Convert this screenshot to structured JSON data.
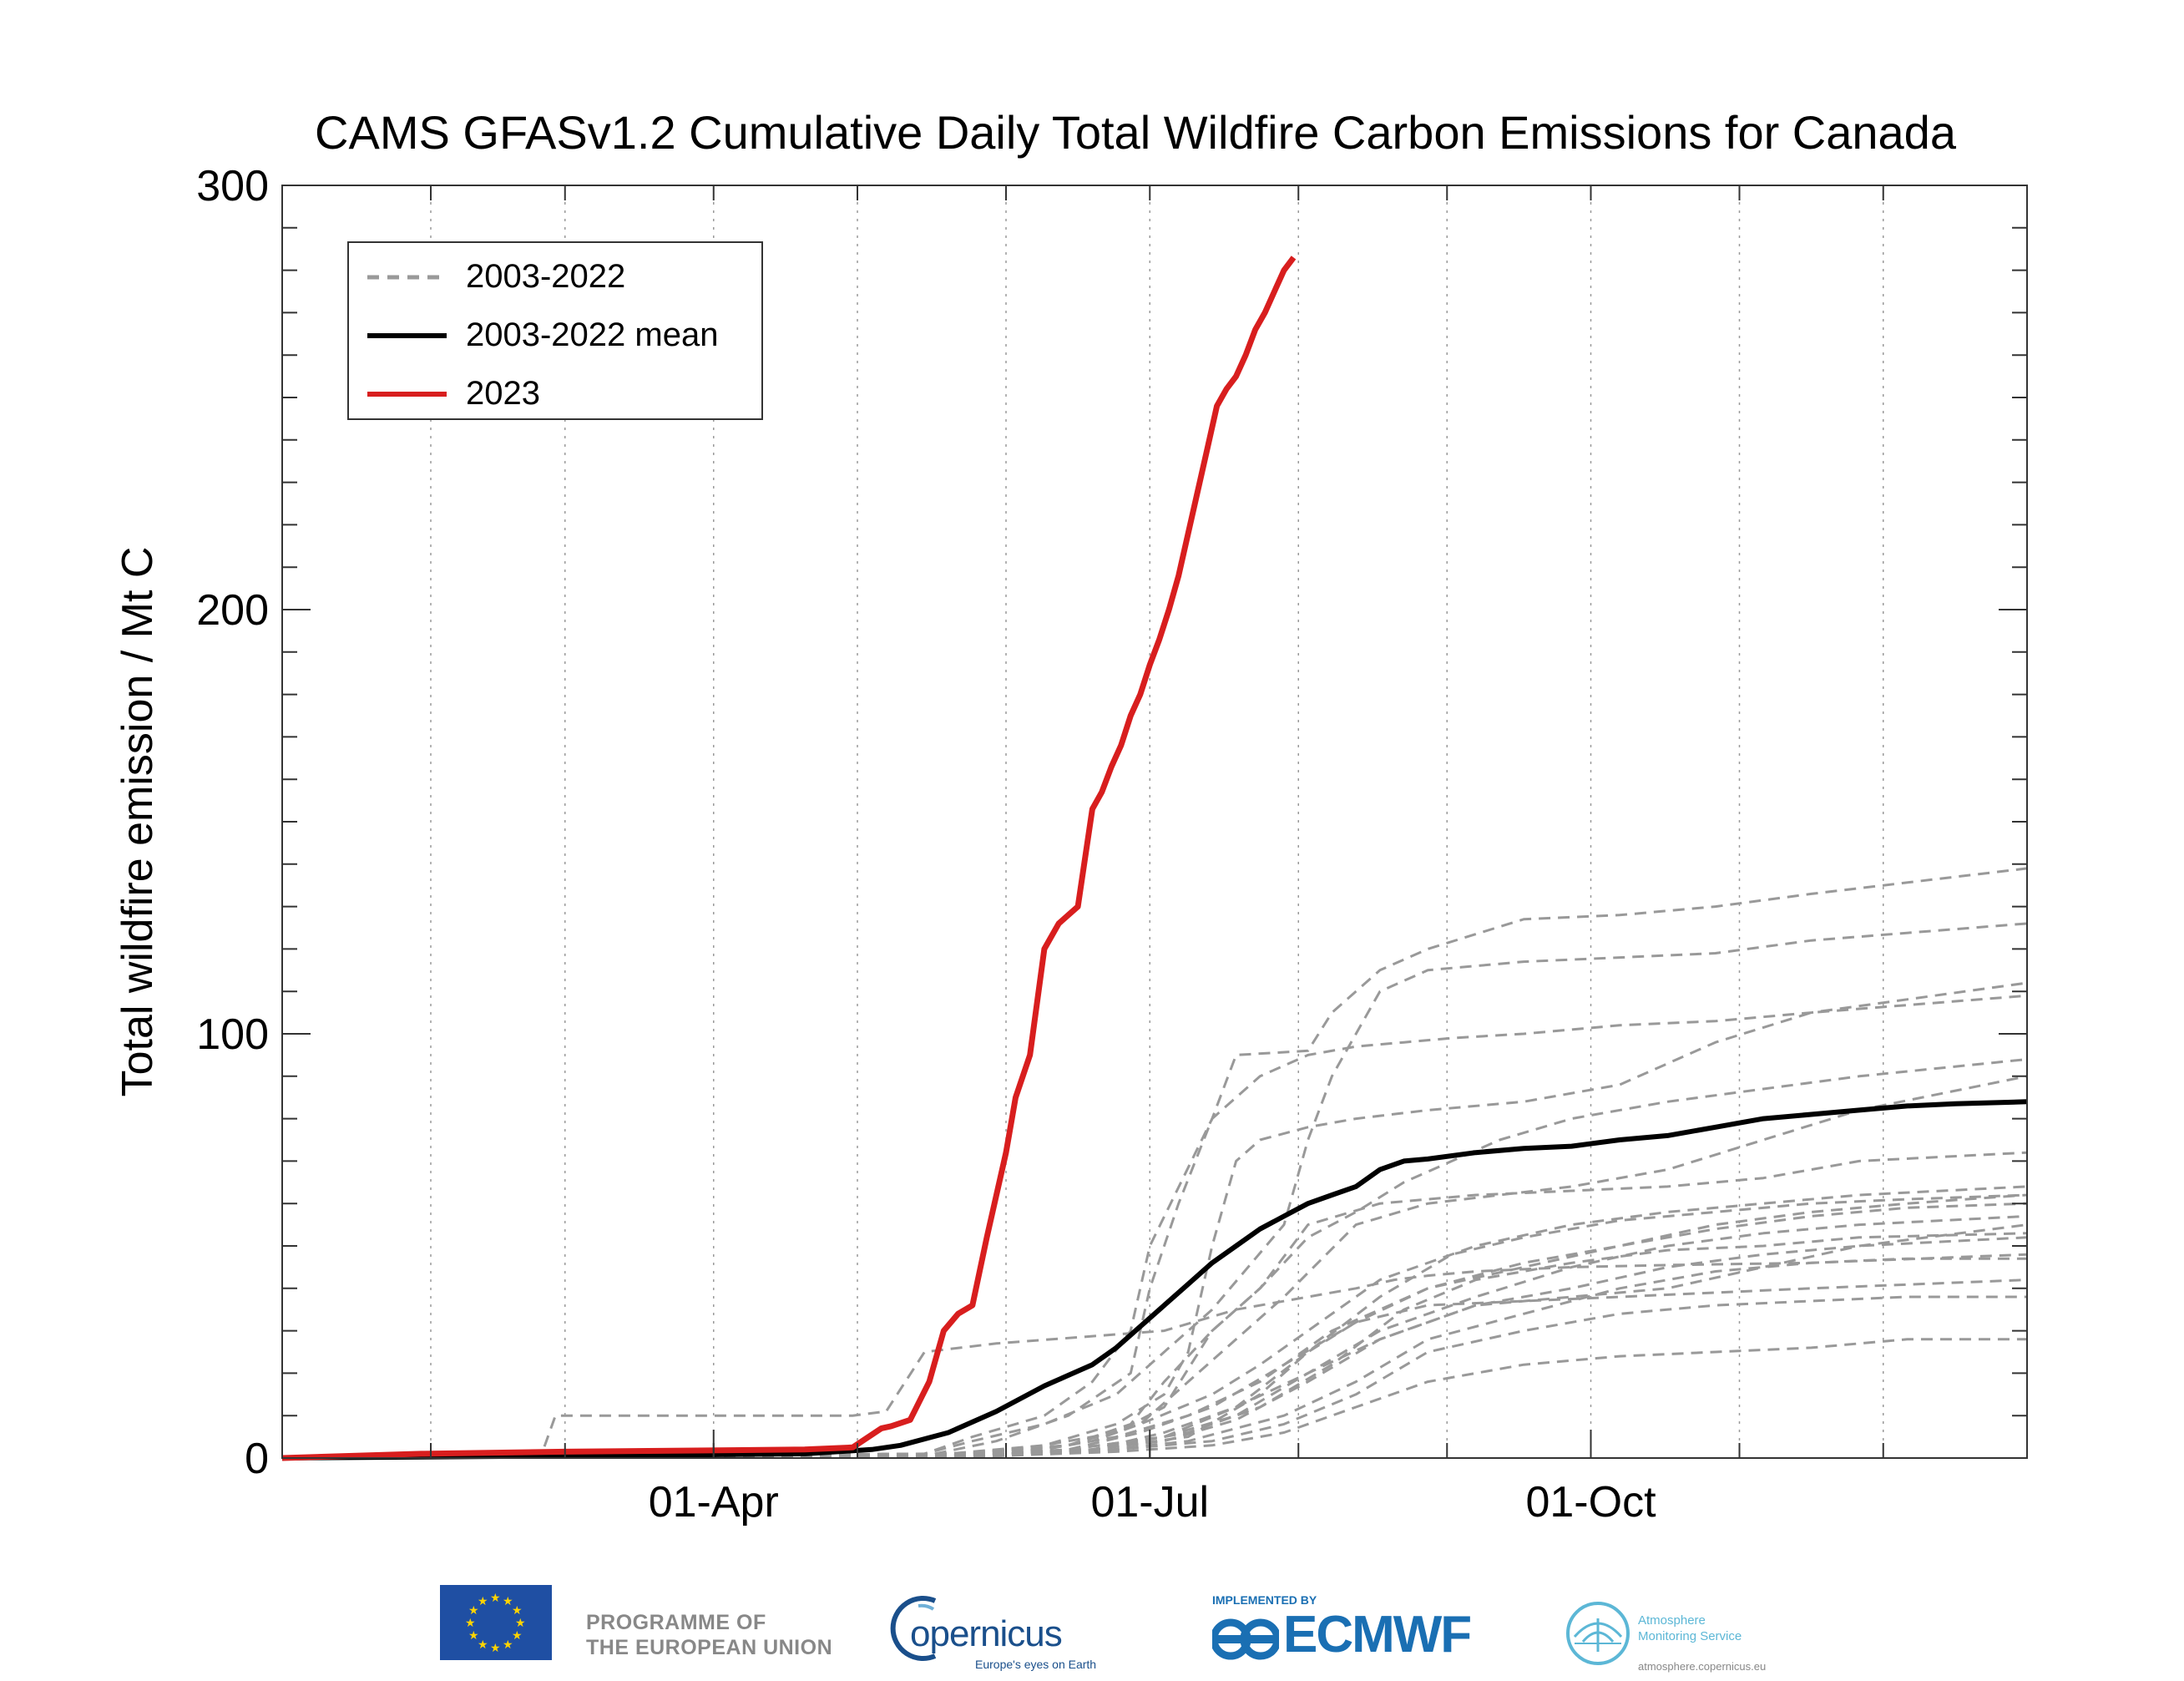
{
  "chart_data": {
    "type": "line",
    "title": "CAMS GFASv1.2 Cumulative Daily Total Wildfire Carbon Emissions for Canada",
    "xlabel": "",
    "ylabel": "Total wildfire emission / Mt C",
    "xlim_day_of_year": [
      1,
      365
    ],
    "ylim": [
      0,
      300
    ],
    "y_ticks": [
      0,
      100,
      200,
      300
    ],
    "x_ticks": [
      {
        "day": 91,
        "label": "01-Apr"
      },
      {
        "day": 182,
        "label": "01-Jul"
      },
      {
        "day": 274,
        "label": "01-Oct"
      }
    ],
    "x_minor_gridlines_day": [
      32,
      60,
      91,
      121,
      152,
      182,
      213,
      244,
      274,
      305,
      335
    ],
    "legend_position": "top-left",
    "legend": [
      {
        "label": "2003-2022",
        "style": "dashed",
        "color": "#999999"
      },
      {
        "label": "2003-2022 mean",
        "style": "solid",
        "color": "#000000"
      },
      {
        "label": "2023",
        "style": "solid",
        "color": "#d81e1e"
      }
    ],
    "series_2023": {
      "name": "2023",
      "color": "#d81e1e",
      "x": [
        1,
        30,
        60,
        90,
        110,
        120,
        126,
        128,
        132,
        136,
        139,
        142,
        145,
        148,
        150,
        152,
        154,
        157,
        160,
        163,
        165,
        167,
        170,
        172,
        174,
        176,
        178,
        180,
        182,
        184,
        186,
        188,
        190,
        192,
        194,
        196,
        198,
        200,
        202,
        204,
        206,
        208,
        210,
        212
      ],
      "values": [
        0,
        1,
        1.5,
        1.8,
        2,
        2.5,
        7,
        7.5,
        9,
        18,
        30,
        34,
        36,
        52,
        62,
        72,
        85,
        95,
        120,
        126,
        128,
        130,
        153,
        157,
        163,
        168,
        175,
        180,
        187,
        193,
        200,
        208,
        218,
        228,
        238,
        248,
        252,
        255,
        260,
        266,
        270,
        275,
        280,
        283
      ]
    },
    "series_mean": {
      "name": "2003-2022 mean",
      "color": "#000000",
      "x": [
        1,
        60,
        110,
        124,
        130,
        140,
        150,
        160,
        170,
        175,
        180,
        185,
        190,
        195,
        200,
        205,
        210,
        215,
        220,
        225,
        230,
        235,
        240,
        250,
        260,
        270,
        280,
        290,
        300,
        310,
        320,
        330,
        340,
        350,
        365
      ],
      "values": [
        0,
        0.5,
        1,
        2,
        3,
        6,
        11,
        17,
        22,
        26,
        31,
        36,
        41,
        46,
        50,
        54,
        57,
        60,
        62,
        64,
        68,
        70,
        70.5,
        72,
        73,
        73.5,
        75,
        76,
        78,
        80,
        81,
        82,
        83,
        83.5,
        84
      ]
    },
    "series_2003_2022": [
      {
        "x": [
          1,
          55,
          58,
          120,
          127,
          135,
          150,
          185,
          200,
          215,
          225,
          233,
          240,
          250,
          270,
          290,
          320,
          365
        ],
        "values": [
          0,
          0.5,
          10,
          10,
          11,
          25,
          27,
          30,
          35,
          38,
          40,
          42,
          43,
          44,
          45,
          45.5,
          46,
          48
        ]
      },
      {
        "x": [
          1,
          135,
          145,
          160,
          170,
          178,
          182,
          195,
          200,
          215,
          220,
          230,
          240,
          260,
          280,
          300,
          320,
          365
        ],
        "values": [
          0,
          1,
          5,
          10,
          18,
          30,
          50,
          80,
          95,
          96,
          105,
          115,
          120,
          127,
          128,
          130,
          133,
          139
        ]
      },
      {
        "x": [
          1,
          135,
          145,
          160,
          175,
          185,
          195,
          210,
          215,
          220,
          225,
          230,
          240,
          260,
          280,
          300,
          320,
          365
        ],
        "values": [
          0,
          1,
          4,
          8,
          15,
          25,
          35,
          55,
          75,
          90,
          100,
          110,
          115,
          117,
          118,
          119,
          122,
          126
        ]
      },
      {
        "x": [
          1,
          135,
          150,
          165,
          178,
          182,
          188,
          195,
          205,
          215,
          225,
          235,
          245,
          260,
          280,
          300,
          320,
          365
        ],
        "values": [
          0,
          0.5,
          4,
          10,
          20,
          40,
          60,
          80,
          90,
          95,
          97,
          98,
          99,
          100,
          102,
          103,
          105,
          112
        ]
      },
      {
        "x": [
          1,
          140,
          160,
          175,
          185,
          190,
          195,
          200,
          205,
          215,
          225,
          240,
          260,
          280,
          300,
          320,
          365
        ],
        "values": [
          0,
          1,
          3,
          8,
          15,
          25,
          50,
          70,
          75,
          78,
          80,
          82,
          84,
          88,
          98,
          105,
          109
        ]
      },
      {
        "x": [
          1,
          140,
          165,
          178,
          185,
          195,
          205,
          215,
          225,
          235,
          245,
          255,
          270,
          290,
          310,
          330,
          365
        ],
        "values": [
          0,
          1,
          3,
          8,
          18,
          30,
          40,
          52,
          58,
          65,
          70,
          75,
          80,
          84,
          87,
          90,
          94
        ]
      },
      {
        "x": [
          1,
          150,
          170,
          180,
          190,
          200,
          210,
          225,
          240,
          255,
          270,
          290,
          310,
          330,
          365
        ],
        "values": [
          0,
          0.5,
          4,
          8,
          18,
          28,
          38,
          55,
          60,
          62,
          64,
          68,
          75,
          82,
          90
        ]
      },
      {
        "x": [
          1,
          140,
          160,
          175,
          185,
          195,
          205,
          215,
          230,
          250,
          270,
          290,
          310,
          330,
          365
        ],
        "values": [
          0,
          0.5,
          3,
          6,
          12,
          30,
          40,
          55,
          60,
          62,
          63,
          64,
          66,
          70,
          72
        ]
      },
      {
        "x": [
          1,
          140,
          165,
          180,
          195,
          205,
          215,
          230,
          250,
          270,
          290,
          310,
          330,
          365
        ],
        "values": [
          0,
          0.5,
          3,
          8,
          15,
          22,
          30,
          42,
          50,
          55,
          58,
          60,
          62,
          64
        ]
      },
      {
        "x": [
          1,
          140,
          160,
          175,
          190,
          205,
          220,
          240,
          260,
          280,
          300,
          320,
          340,
          365
        ],
        "values": [
          0,
          0.5,
          2,
          5,
          10,
          18,
          30,
          40,
          45,
          50,
          55,
          58,
          60,
          62
        ]
      },
      {
        "x": [
          1,
          145,
          165,
          180,
          195,
          210,
          225,
          240,
          260,
          280,
          300,
          320,
          340,
          365
        ],
        "values": [
          0,
          0.5,
          2,
          6,
          12,
          22,
          32,
          40,
          46,
          50,
          54,
          57,
          59,
          60
        ]
      },
      {
        "x": [
          1,
          145,
          165,
          185,
          200,
          215,
          230,
          250,
          270,
          290,
          310,
          330,
          365
        ],
        "values": [
          0,
          0.5,
          2,
          5,
          10,
          20,
          30,
          38,
          45,
          50,
          53,
          55,
          57
        ]
      },
      {
        "x": [
          1,
          150,
          170,
          185,
          200,
          215,
          230,
          250,
          270,
          290,
          310,
          330,
          365
        ],
        "values": [
          0,
          0.5,
          2,
          6,
          12,
          20,
          28,
          36,
          40,
          45,
          48,
          50,
          52
        ]
      },
      {
        "x": [
          1,
          145,
          170,
          185,
          200,
          215,
          230,
          250,
          270,
          290,
          310,
          330,
          365
        ],
        "values": [
          0,
          0.5,
          2,
          4,
          9,
          18,
          28,
          36,
          38,
          40,
          45,
          50,
          55
        ]
      },
      {
        "x": [
          1,
          145,
          170,
          190,
          205,
          215,
          225,
          240,
          260,
          280,
          300,
          320,
          365
        ],
        "values": [
          0,
          0.5,
          2,
          5,
          15,
          25,
          32,
          36,
          37,
          38,
          39,
          40,
          42
        ]
      },
      {
        "x": [
          1,
          150,
          175,
          195,
          210,
          225,
          240,
          260,
          280,
          300,
          320,
          340,
          365
        ],
        "values": [
          0,
          0.5,
          2,
          4,
          8,
          15,
          25,
          30,
          34,
          36,
          37,
          38,
          38
        ]
      },
      {
        "x": [
          1,
          150,
          175,
          195,
          210,
          225,
          240,
          260,
          280,
          300,
          320,
          340,
          365
        ],
        "values": [
          0,
          0.5,
          1.5,
          3,
          6,
          12,
          18,
          22,
          24,
          25,
          26,
          28,
          28
        ]
      },
      {
        "x": [
          1,
          145,
          170,
          190,
          205,
          220,
          235,
          250,
          270,
          290,
          310,
          330,
          365
        ],
        "values": [
          0,
          0.5,
          2,
          6,
          12,
          22,
          35,
          42,
          46,
          49,
          50,
          52,
          53
        ]
      },
      {
        "x": [
          1,
          150,
          170,
          190,
          210,
          225,
          240,
          260,
          280,
          300,
          320,
          340,
          365
        ],
        "values": [
          0,
          0.5,
          1.5,
          4,
          10,
          18,
          28,
          34,
          40,
          44,
          46,
          47,
          47
        ]
      },
      {
        "x": [
          1,
          145,
          165,
          185,
          200,
          215,
          230,
          245,
          260,
          280,
          300,
          320,
          340,
          365
        ],
        "values": [
          0,
          0.5,
          2,
          5,
          12,
          25,
          38,
          48,
          52,
          56,
          58,
          60,
          61,
          62
        ]
      }
    ]
  },
  "footer": {
    "eu_text_line1": "PROGRAMME OF",
    "eu_text_line2": "THE EUROPEAN UNION",
    "copernicus_word": "opernicus",
    "copernicus_tagline": "Europe's eyes on Earth",
    "ecmwf_implemented": "IMPLEMENTED BY",
    "ecmwf_word": "ECMWF",
    "ams_line1": "Atmosphere",
    "ams_line2": "Monitoring Service",
    "ams_url": "atmosphere.copernicus.eu"
  }
}
